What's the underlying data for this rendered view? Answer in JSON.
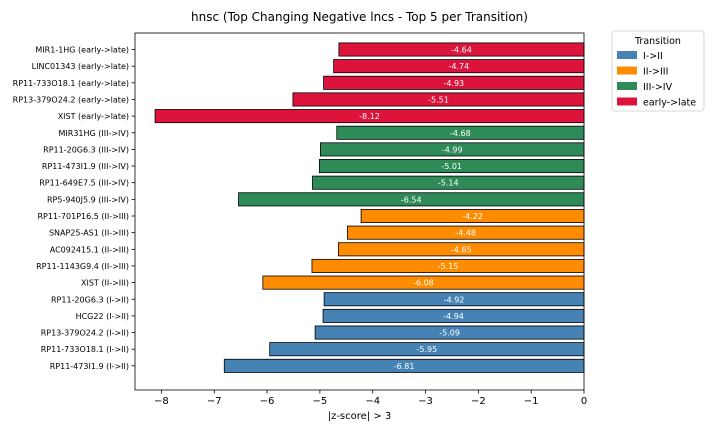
{
  "chart_data": {
    "type": "bar",
    "orientation": "horizontal",
    "title": "hnsc (Top Changing Negative lncs - Top 5 per Transition)",
    "xlabel": "|z-score| > 3",
    "ylabel": "",
    "xlim": [
      -8.5,
      0
    ],
    "xticks": [
      "−8",
      "−7",
      "−6",
      "−5",
      "−4",
      "−3",
      "−2",
      "−1",
      "0"
    ],
    "grid": false,
    "legend": {
      "title": "Transition",
      "placement": "outside-top-right",
      "entries": [
        {
          "label": "I->II",
          "color": "#4682b4"
        },
        {
          "label": "II->III",
          "color": "#ff8c00"
        },
        {
          "label": "III->IV",
          "color": "#2e8b57"
        },
        {
          "label": "early->late",
          "color": "#dc143c"
        }
      ]
    },
    "bars": [
      {
        "label": "MIR1-1HG (early->late)",
        "value": -4.64,
        "value_label": "-4.64",
        "group": "early->late"
      },
      {
        "label": "LINC01343 (early->late)",
        "value": -4.74,
        "value_label": "-4.74",
        "group": "early->late"
      },
      {
        "label": "RP11-733O18.1 (early->late)",
        "value": -4.93,
        "value_label": "-4.93",
        "group": "early->late"
      },
      {
        "label": "RP13-379O24.2 (early->late)",
        "value": -5.51,
        "value_label": "-5.51",
        "group": "early->late"
      },
      {
        "label": "XIST (early->late)",
        "value": -8.12,
        "value_label": "-8.12",
        "group": "early->late"
      },
      {
        "label": "MIR31HG (III->IV)",
        "value": -4.68,
        "value_label": "-4.68",
        "group": "III->IV"
      },
      {
        "label": "RP11-20G6.3 (III->IV)",
        "value": -4.99,
        "value_label": "-4.99",
        "group": "III->IV"
      },
      {
        "label": "RP11-473I1.9 (III->IV)",
        "value": -5.01,
        "value_label": "-5.01",
        "group": "III->IV"
      },
      {
        "label": "RP11-649E7.5 (III->IV)",
        "value": -5.14,
        "value_label": "-5.14",
        "group": "III->IV"
      },
      {
        "label": "RP5-940J5.9 (III->IV)",
        "value": -6.54,
        "value_label": "-6.54",
        "group": "III->IV"
      },
      {
        "label": "RP11-701P16.5 (II->III)",
        "value": -4.22,
        "value_label": "-4.22",
        "group": "II->III"
      },
      {
        "label": "SNAP25-AS1 (II->III)",
        "value": -4.48,
        "value_label": "-4.48",
        "group": "II->III"
      },
      {
        "label": "AC092415.1 (II->III)",
        "value": -4.65,
        "value_label": "-4.65",
        "group": "II->III"
      },
      {
        "label": "RP11-1143G9.4 (II->III)",
        "value": -5.15,
        "value_label": "-5.15",
        "group": "II->III"
      },
      {
        "label": "XIST (II->III)",
        "value": -6.08,
        "value_label": "-6.08",
        "group": "II->III"
      },
      {
        "label": "RP11-20G6.3 (I->II)",
        "value": -4.92,
        "value_label": "-4.92",
        "group": "I->II"
      },
      {
        "label": "HCG22 (I->II)",
        "value": -4.94,
        "value_label": "-4.94",
        "group": "I->II"
      },
      {
        "label": "RP13-379O24.2 (I->II)",
        "value": -5.09,
        "value_label": "-5.09",
        "group": "I->II"
      },
      {
        "label": "RP11-733O18.1 (I->II)",
        "value": -5.95,
        "value_label": "-5.95",
        "group": "I->II"
      },
      {
        "label": "RP11-473I1.9 (I->II)",
        "value": -6.81,
        "value_label": "-6.81",
        "group": "I->II"
      }
    ]
  }
}
